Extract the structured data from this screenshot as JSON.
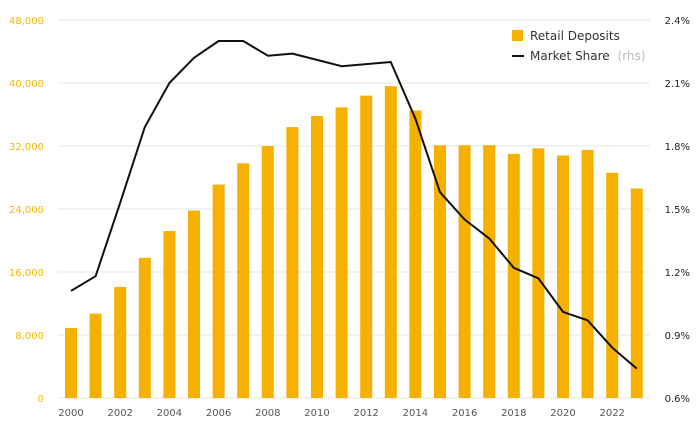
{
  "chart_data": {
    "type": "bar",
    "x": [
      2000,
      2001,
      2002,
      2003,
      2004,
      2005,
      2006,
      2007,
      2008,
      2009,
      2010,
      2011,
      2012,
      2013,
      2014,
      2015,
      2016,
      2017,
      2018,
      2019,
      2020,
      2021,
      2022,
      2023
    ],
    "series": [
      {
        "name": "Retail Deposits",
        "kind": "bar",
        "axis": "left",
        "color": "#f5b000",
        "values": [
          8900,
          10700,
          14100,
          17800,
          21200,
          23800,
          27100,
          29800,
          32000,
          34400,
          35800,
          36900,
          38400,
          39600,
          36500,
          32100,
          32100,
          32100,
          31000,
          31700,
          30800,
          31500,
          28600,
          26600
        ]
      },
      {
        "name": "Market Share",
        "note": "(rhs)",
        "kind": "line",
        "axis": "right",
        "color": "#111111",
        "values": [
          1.11,
          1.18,
          1.53,
          1.89,
          2.1,
          2.22,
          2.3,
          2.3,
          2.23,
          2.24,
          2.21,
          2.18,
          2.19,
          2.2,
          1.93,
          1.58,
          1.45,
          1.36,
          1.22,
          1.17,
          1.01,
          0.97,
          0.84,
          0.74
        ]
      }
    ],
    "y_left": {
      "ticks": [
        0,
        8000,
        16000,
        24000,
        32000,
        40000,
        48000
      ],
      "tick_labels": [
        "0",
        "8,000",
        "16,000",
        "24,000",
        "32,000",
        "40,000",
        "48,000"
      ],
      "range": [
        0,
        48000
      ],
      "color": "#f5b800"
    },
    "y_right": {
      "ticks": [
        0.6,
        0.9,
        1.2,
        1.5,
        1.8,
        2.1,
        2.4
      ],
      "tick_labels": [
        "0.6%",
        "0.9%",
        "1.2%",
        "1.5%",
        "1.8%",
        "2.1%",
        "2.4%"
      ],
      "range": [
        0.6,
        2.4
      ],
      "color": "#222222"
    },
    "x_tick_labels": [
      "2000",
      "2002",
      "2004",
      "2006",
      "2008",
      "2010",
      "2012",
      "2014",
      "2016",
      "2018",
      "2020",
      "2022"
    ],
    "grid": true,
    "legend_position": "top-right",
    "title": "",
    "xlabel": "",
    "ylabel": ""
  }
}
